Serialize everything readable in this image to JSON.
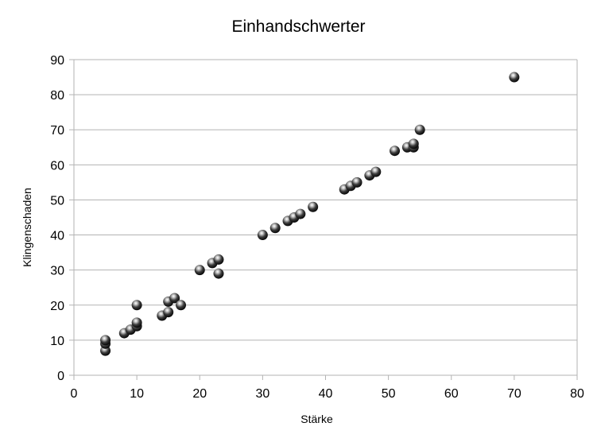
{
  "chart_data": {
    "type": "scatter",
    "title": "Einhandschwerter",
    "xlabel": "Stärke",
    "ylabel": "Klingenschaden",
    "xlim": [
      0,
      80
    ],
    "ylim": [
      0,
      90
    ],
    "x_ticks": [
      "0",
      "10",
      "20",
      "30",
      "40",
      "50",
      "60",
      "70",
      "80"
    ],
    "y_ticks": [
      "0",
      "10",
      "20",
      "30",
      "40",
      "50",
      "60",
      "70",
      "80",
      "90"
    ],
    "grid": "horizontal",
    "legend": "none",
    "point_color": "#555555",
    "points": [
      {
        "x": 5,
        "y": 7
      },
      {
        "x": 5,
        "y": 9
      },
      {
        "x": 5,
        "y": 10
      },
      {
        "x": 8,
        "y": 12
      },
      {
        "x": 9,
        "y": 13
      },
      {
        "x": 10,
        "y": 14
      },
      {
        "x": 10,
        "y": 15
      },
      {
        "x": 10,
        "y": 20
      },
      {
        "x": 14,
        "y": 17
      },
      {
        "x": 15,
        "y": 18
      },
      {
        "x": 15,
        "y": 21
      },
      {
        "x": 16,
        "y": 22
      },
      {
        "x": 17,
        "y": 20
      },
      {
        "x": 20,
        "y": 30
      },
      {
        "x": 22,
        "y": 32
      },
      {
        "x": 23,
        "y": 33
      },
      {
        "x": 23,
        "y": 29
      },
      {
        "x": 30,
        "y": 40
      },
      {
        "x": 32,
        "y": 42
      },
      {
        "x": 34,
        "y": 44
      },
      {
        "x": 35,
        "y": 45
      },
      {
        "x": 36,
        "y": 46
      },
      {
        "x": 38,
        "y": 48
      },
      {
        "x": 43,
        "y": 53
      },
      {
        "x": 44,
        "y": 54
      },
      {
        "x": 45,
        "y": 55
      },
      {
        "x": 47,
        "y": 57
      },
      {
        "x": 48,
        "y": 58
      },
      {
        "x": 51,
        "y": 64
      },
      {
        "x": 53,
        "y": 65
      },
      {
        "x": 54,
        "y": 65
      },
      {
        "x": 54,
        "y": 66
      },
      {
        "x": 55,
        "y": 70
      },
      {
        "x": 70,
        "y": 85
      }
    ]
  }
}
